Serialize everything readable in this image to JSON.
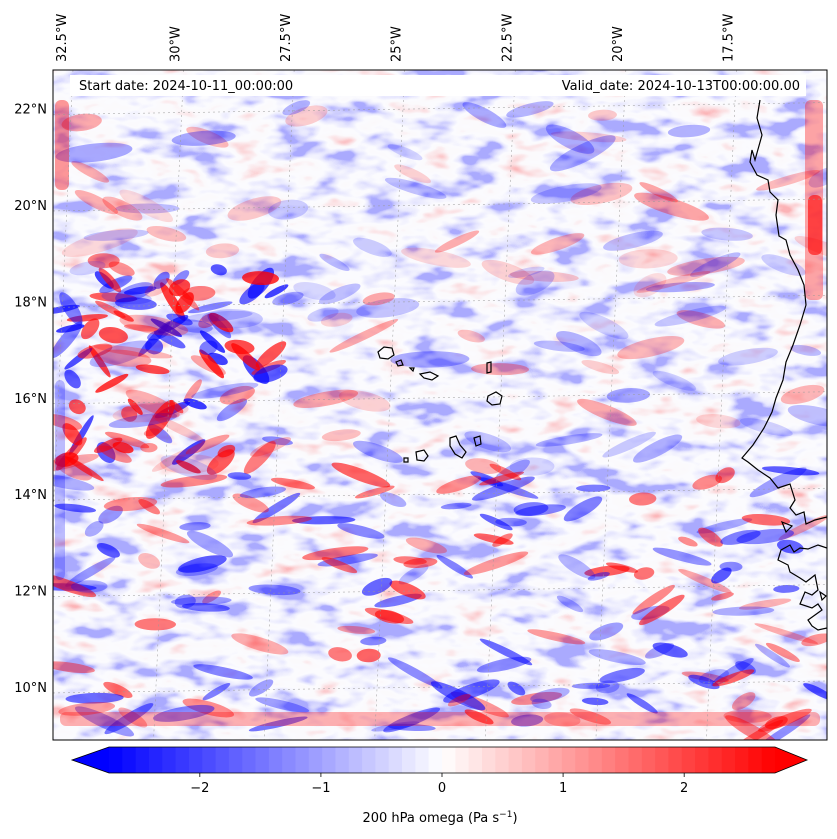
{
  "map": {
    "start_label": "Start date: 2024-10-11_00:00:00",
    "valid_label": "Valid_date: 2024-10-13T00:00:00.00",
    "lon_ticks": [
      {
        "label": "32.5°W",
        "lon": -32.5
      },
      {
        "label": "30°W",
        "lon": -30
      },
      {
        "label": "27.5°W",
        "lon": -27.5
      },
      {
        "label": "25°W",
        "lon": -25
      },
      {
        "label": "22.5°W",
        "lon": -22.5
      },
      {
        "label": "20°W",
        "lon": -20
      },
      {
        "label": "17.5°W",
        "lon": -17.5
      }
    ],
    "lat_ticks": [
      {
        "label": "22°N",
        "lat": 22
      },
      {
        "label": "20°N",
        "lat": 20
      },
      {
        "label": "18°N",
        "lat": 18
      },
      {
        "label": "16°N",
        "lat": 16
      },
      {
        "label": "14°N",
        "lat": 14
      },
      {
        "label": "12°N",
        "lat": 12
      },
      {
        "label": "10°N",
        "lat": 10
      }
    ],
    "extent": {
      "lon_min": -32.5,
      "lon_max": -15.0,
      "lat_min": 8.9,
      "lat_max": 22.8
    },
    "field": "200 hPa omega",
    "units": "Pa s⁻¹"
  },
  "colorbar": {
    "label_main": "200 hPa omega (Pa s",
    "label_sup": "−1",
    "label_close": ")",
    "vmin": -2.75,
    "vmax": 2.75,
    "ticks": [
      {
        "label": "−2",
        "value": -2
      },
      {
        "label": "−1",
        "value": -1
      },
      {
        "label": "0",
        "value": 0
      },
      {
        "label": "1",
        "value": 1
      },
      {
        "label": "2",
        "value": 2
      }
    ],
    "colors": {
      "negative": "#0000ff",
      "zero": "#ffffff",
      "positive": "#ff0000"
    }
  }
}
